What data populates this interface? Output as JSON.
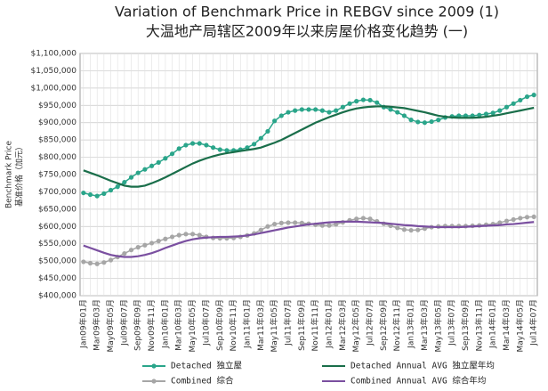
{
  "chart_data": {
    "type": "line",
    "title": "Variation of Benchmark Price in REBGV since 2009 (1)",
    "subtitle": "大温地产局辖区2009年以来房屋价格变化趋势 (一)",
    "y_label": "Benchmark Price",
    "y_label_2": "基准价格（加元）",
    "categories": [
      "Jan09年01月",
      null,
      "Mar09年03月",
      null,
      "May09年05月",
      null,
      "Jul09年07月",
      null,
      "Sep09年09月",
      null,
      "Nov09年11月",
      null,
      "Jan10年01月",
      null,
      "Mar10年03月",
      null,
      "May10年05月",
      null,
      "Jul10年07月",
      null,
      "Sep10年09月",
      null,
      "Nov10年11月",
      null,
      "Jan11年01月",
      null,
      "Mar11年03月",
      null,
      "May11年05月",
      null,
      "Jul11年07月",
      null,
      "Sep11年09月",
      null,
      "Nov11年11月",
      null,
      "Jan12年01月",
      null,
      "Mar12年03月",
      null,
      "May12年05月",
      null,
      "Jul12年07月",
      null,
      "Sep12年09月",
      null,
      "Nov12年11月",
      null,
      "Jan13年01月",
      null,
      "Mar13年03月",
      null,
      "May13年05月",
      null,
      "Jul13年07月",
      null,
      "Sep13年09月",
      null,
      "Nov13年11月",
      null,
      "Jan14年01月",
      null,
      "Mar14年03月",
      null,
      "May14年05月",
      null,
      "Jul14年07月"
    ],
    "series": [
      {
        "name": "Detached 独立屋",
        "color": "#2aa58a",
        "markers": true,
        "values": [
          697000,
          692000,
          688000,
          695000,
          705000,
          715000,
          728000,
          742000,
          755000,
          765000,
          775000,
          785000,
          797000,
          810000,
          825000,
          835000,
          840000,
          840000,
          835000,
          828000,
          822000,
          820000,
          820000,
          822000,
          828000,
          838000,
          855000,
          875000,
          905000,
          920000,
          930000,
          935000,
          938000,
          938000,
          938000,
          935000,
          930000,
          935000,
          945000,
          955000,
          962000,
          966000,
          965000,
          958000,
          945000,
          938000,
          930000,
          920000,
          908000,
          902000,
          900000,
          903000,
          908000,
          915000,
          918000,
          920000,
          920000,
          920000,
          922000,
          925000,
          928000,
          935000,
          945000,
          955000,
          965000,
          975000,
          980000
        ]
      },
      {
        "name": "Detached Annual AVG 独立屋年均",
        "color": "#1a6e4a",
        "markers": false,
        "values": [
          762000,
          755000,
          748000,
          740000,
          732000,
          725000,
          718000,
          715000,
          715000,
          718000,
          725000,
          733000,
          742000,
          752000,
          762000,
          772000,
          782000,
          790000,
          797000,
          803000,
          808000,
          812000,
          815000,
          818000,
          821000,
          824000,
          828000,
          835000,
          842000,
          850000,
          860000,
          870000,
          880000,
          890000,
          900000,
          908000,
          916000,
          923000,
          930000,
          936000,
          941000,
          944000,
          946000,
          947000,
          947000,
          946000,
          944000,
          942000,
          938000,
          934000,
          930000,
          925000,
          920000,
          917000,
          915000,
          914000,
          914000,
          914000,
          915000,
          917000,
          920000,
          923000,
          927000,
          931000,
          935000,
          939000,
          943000
        ]
      },
      {
        "name": "Combined 综合",
        "color": "#a6a6a6",
        "markers": true,
        "values": [
          498000,
          494000,
          492000,
          496000,
          503000,
          512000,
          522000,
          532000,
          540000,
          546000,
          552000,
          558000,
          564000,
          570000,
          575000,
          578000,
          578000,
          575000,
          570000,
          567000,
          566000,
          566000,
          567000,
          570000,
          574000,
          580000,
          590000,
          600000,
          607000,
          610000,
          611000,
          611000,
          610000,
          608000,
          605000,
          603000,
          603000,
          606000,
          612000,
          618000,
          622000,
          624000,
          622000,
          615000,
          608000,
          602000,
          596000,
          591000,
          589000,
          590000,
          594000,
          598000,
          600000,
          601000,
          601000,
          601000,
          601000,
          602000,
          603000,
          605000,
          607000,
          611000,
          616000,
          620000,
          624000,
          627000,
          628000
        ]
      },
      {
        "name": "Combined Annual AVG 综合年均",
        "color": "#7a4fa0",
        "markers": false,
        "values": [
          545000,
          538000,
          531000,
          524000,
          518000,
          514000,
          512000,
          512000,
          514000,
          518000,
          523000,
          530000,
          538000,
          545000,
          552000,
          558000,
          563000,
          566000,
          568000,
          569000,
          570000,
          570000,
          571000,
          572000,
          574000,
          577000,
          581000,
          585000,
          589000,
          593000,
          597000,
          600000,
          603000,
          606000,
          608000,
          610000,
          612000,
          613000,
          614000,
          614000,
          614000,
          613000,
          612000,
          611000,
          610000,
          608000,
          606000,
          604000,
          603000,
          601000,
          600000,
          599000,
          598000,
          598000,
          598000,
          598000,
          599000,
          600000,
          601000,
          602000,
          603000,
          604000,
          606000,
          607000,
          609000,
          611000,
          613000
        ]
      }
    ],
    "ylim": [
      400000,
      1100000
    ],
    "yticks": [
      {
        "value": 400000,
        "label": "$400,000"
      },
      {
        "value": 450000,
        "label": "$450,000"
      },
      {
        "value": 500000,
        "label": "$500,000"
      },
      {
        "value": 550000,
        "label": "$550,000"
      },
      {
        "value": 600000,
        "label": "$600,000"
      },
      {
        "value": 650000,
        "label": "$650,000"
      },
      {
        "value": 700000,
        "label": "$700,000"
      },
      {
        "value": 750000,
        "label": "$750,000"
      },
      {
        "value": 800000,
        "label": "$800,000"
      },
      {
        "value": 850000,
        "label": "$850,000"
      },
      {
        "value": 900000,
        "label": "$900,000"
      },
      {
        "value": 950000,
        "label": "$950,000"
      },
      {
        "value": 1000000,
        "label": "$1,000,000"
      },
      {
        "value": 1050000,
        "label": "$1,050,000"
      },
      {
        "value": 1100000,
        "label": "$1,100,000"
      }
    ],
    "grid": true,
    "legend": "bottom"
  }
}
